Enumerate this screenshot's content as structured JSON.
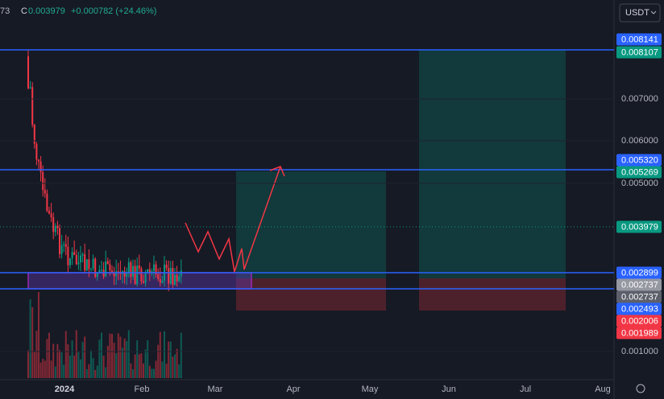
{
  "header": {
    "prev": "73",
    "close_label": "C",
    "close": "0.003979",
    "change": "+0.000782 (+24.46%)"
  },
  "currency": "USDT",
  "price_ticks": [
    "0.007000",
    "0.006000",
    "0.005000",
    "0.001000"
  ],
  "price_labels": [
    "0.008141",
    "0.008107",
    "0.005320",
    "0.005269",
    "0.003979",
    "0.002899",
    "0.002737",
    "0.002737",
    "0.002493",
    "0.002006",
    "0.001989"
  ],
  "time_ticks": [
    "2024",
    "Feb",
    "Mar",
    "Apr",
    "May",
    "Jun",
    "Jul",
    "Aug"
  ]
}
